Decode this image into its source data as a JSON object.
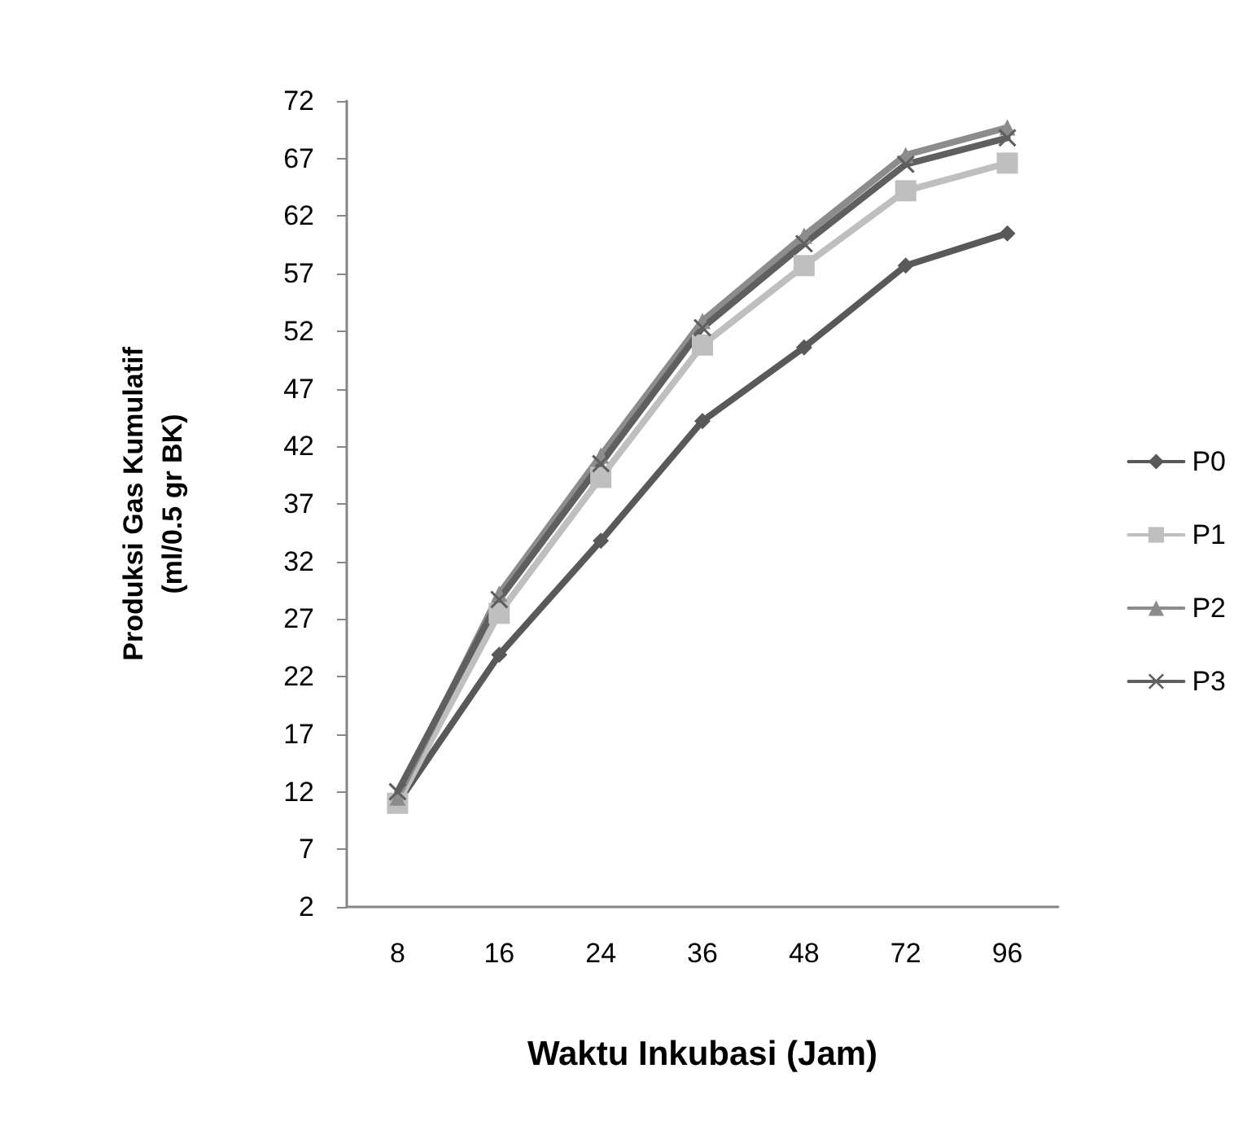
{
  "chart_data": {
    "type": "line",
    "xlabel": "Waktu Inkubasi (Jam)",
    "ylabel": "Produksi Gas Kumulatif\n(ml/0.5 gr BK)",
    "categories": [
      "8",
      "16",
      "24",
      "36",
      "48",
      "72",
      "96"
    ],
    "ylim": [
      2,
      72
    ],
    "yticks": [
      2,
      7,
      12,
      17,
      22,
      27,
      32,
      37,
      42,
      47,
      52,
      57,
      62,
      67,
      72
    ],
    "grid": false,
    "legend": "right",
    "line_style": "solid",
    "series": [
      {
        "name": "P0",
        "color": "#595959",
        "marker": "diamond",
        "values": [
          11,
          23.9,
          33.8,
          44.2,
          50.6,
          57.7,
          60.5
        ]
      },
      {
        "name": "P1",
        "color": "#bfbfbf",
        "marker": "square",
        "values": [
          11,
          27.5,
          39.3,
          50.8,
          57.7,
          64.2,
          66.6
        ]
      },
      {
        "name": "P2",
        "color": "#8c8c8c",
        "marker": "triangle",
        "values": [
          11.5,
          29.2,
          41.2,
          52.9,
          60.3,
          67.3,
          69.7
        ]
      },
      {
        "name": "P3",
        "color": "#5f5f5f",
        "marker": "cross",
        "values": [
          12,
          28.7,
          40.5,
          52.3,
          59.6,
          66.5,
          68.8
        ]
      }
    ]
  }
}
